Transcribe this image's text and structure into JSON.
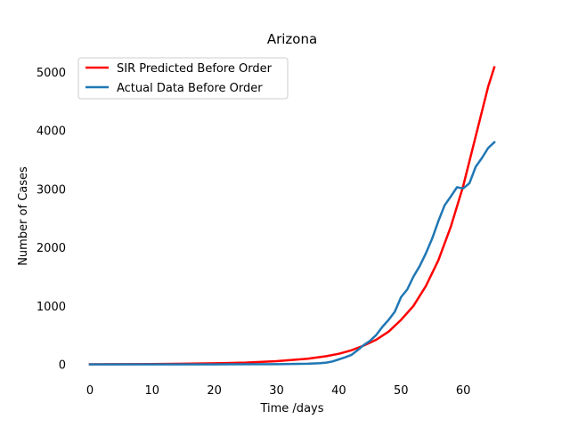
{
  "chart_data": {
    "type": "line",
    "title": "Arizona",
    "xlabel": "Time /days",
    "ylabel": "Number of Cases",
    "xlim": [
      -3,
      68
    ],
    "ylim": [
      -250,
      5350
    ],
    "x_ticks": [
      0,
      10,
      20,
      30,
      40,
      50,
      60
    ],
    "y_ticks": [
      0,
      1000,
      2000,
      3000,
      4000,
      5000
    ],
    "grid": false,
    "legend_position": "upper-left",
    "series": [
      {
        "name": "SIR Predicted Before Order",
        "color": "#ff0000",
        "x": [
          0,
          5,
          10,
          15,
          20,
          25,
          30,
          35,
          38,
          40,
          42,
          44,
          46,
          48,
          50,
          52,
          54,
          56,
          58,
          60,
          62,
          64,
          65
        ],
        "y": [
          1,
          2,
          5,
          10,
          18,
          30,
          55,
          95,
          140,
          180,
          240,
          320,
          420,
          560,
          760,
          1000,
          1340,
          1780,
          2350,
          3050,
          3900,
          4750,
          5080
        ]
      },
      {
        "name": "Actual Data Before Order",
        "color": "#1f77b4",
        "x": [
          0,
          10,
          20,
          30,
          35,
          37,
          38,
          39,
          40,
          41,
          42,
          43,
          44,
          45,
          46,
          47,
          48,
          49,
          50,
          51,
          52,
          53,
          54,
          55,
          56,
          57,
          58,
          59,
          60,
          61,
          62,
          63,
          64,
          65
        ],
        "y": [
          0,
          0,
          0,
          3,
          10,
          20,
          30,
          50,
          85,
          120,
          160,
          240,
          330,
          400,
          500,
          640,
          760,
          900,
          1150,
          1280,
          1500,
          1680,
          1900,
          2150,
          2450,
          2720,
          2870,
          3030,
          3010,
          3100,
          3380,
          3530,
          3700,
          3800
        ]
      }
    ]
  }
}
